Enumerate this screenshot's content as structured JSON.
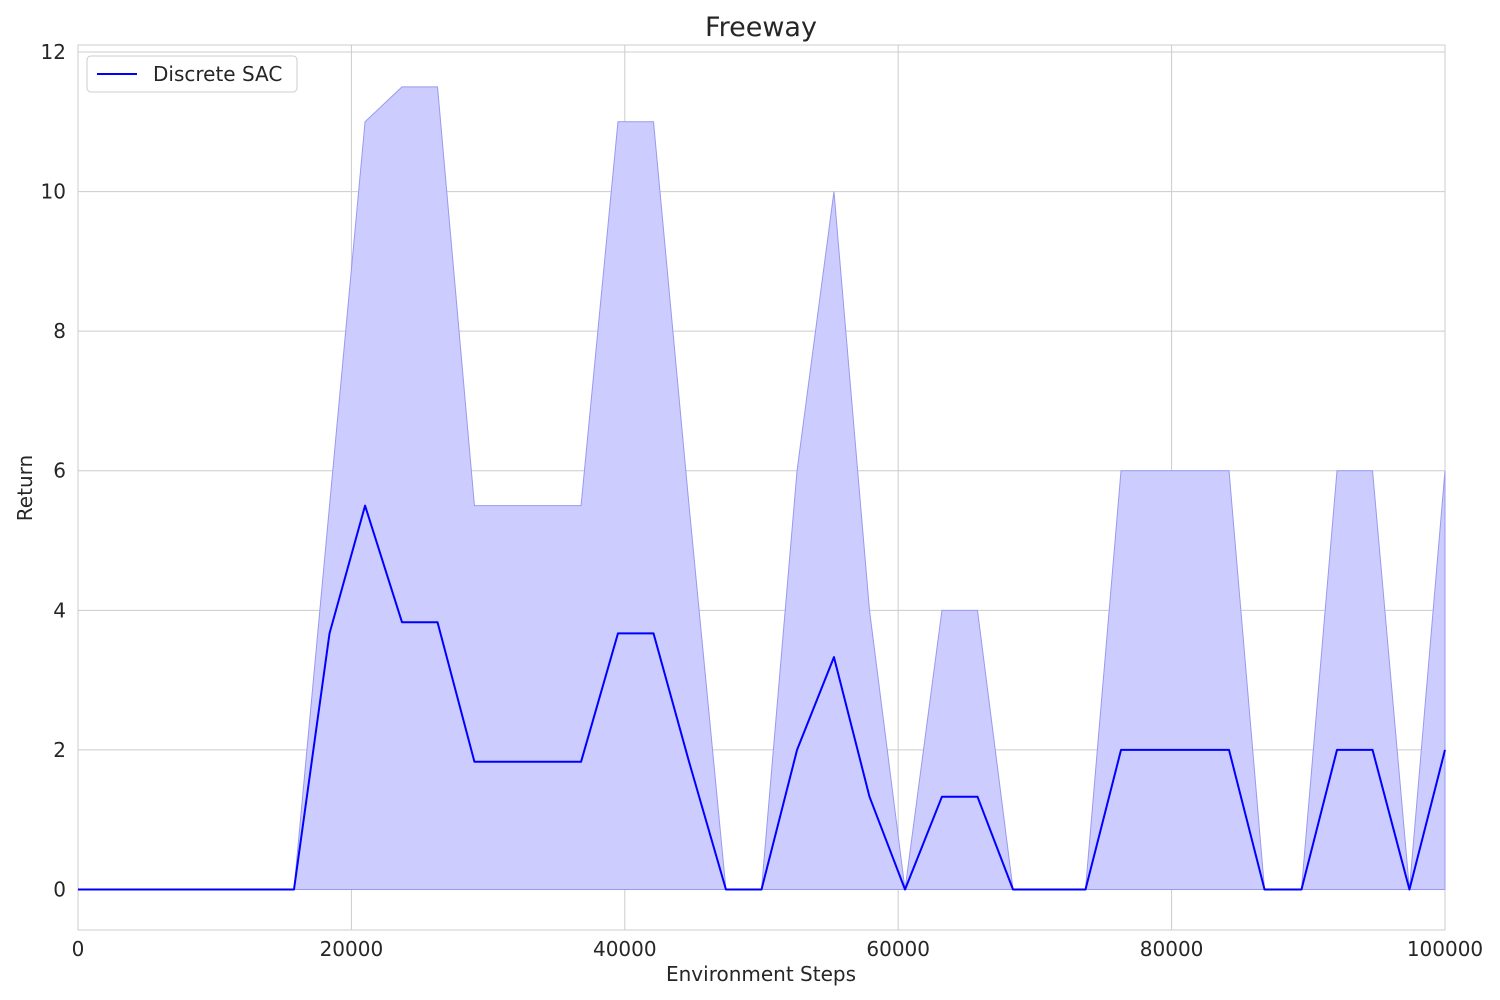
{
  "chart_data": {
    "type": "line",
    "title": "Freeway",
    "xlabel": "Environment Steps",
    "ylabel": "Return",
    "xlim": [
      0,
      100000
    ],
    "ylim": [
      -0.58,
      12.1
    ],
    "x_ticks": [
      0,
      20000,
      40000,
      60000,
      80000,
      100000
    ],
    "y_ticks": [
      0,
      2,
      4,
      6,
      8,
      10,
      12
    ],
    "grid": true,
    "legend_placement": "top-left",
    "series": [
      {
        "name": "Discrete SAC",
        "color": "#0000ff",
        "band_color": "#ccccff",
        "x": [
          0,
          15800,
          18400,
          21000,
          23700,
          26300,
          29000,
          31600,
          34200,
          36800,
          39500,
          42100,
          44700,
          47400,
          50000,
          52600,
          55300,
          57900,
          60500,
          63200,
          65800,
          68400,
          71000,
          73700,
          76300,
          78900,
          81600,
          84200,
          86800,
          89500,
          92100,
          94700,
          97400,
          100000
        ],
        "values": [
          0,
          0,
          3.67,
          5.5,
          3.83,
          3.83,
          1.83,
          1.83,
          1.83,
          1.83,
          3.67,
          3.67,
          1.83,
          0,
          0,
          2,
          3.33,
          1.33,
          0,
          1.33,
          1.33,
          0,
          0,
          0,
          2,
          2,
          2,
          2,
          0,
          0,
          2,
          2,
          0,
          2
        ],
        "lower": [
          0,
          0,
          0,
          0,
          0,
          0,
          0,
          0,
          0,
          0,
          0,
          0,
          0,
          0,
          0,
          0,
          0,
          0,
          0,
          0,
          0,
          0,
          0,
          0,
          0,
          0,
          0,
          0,
          0,
          0,
          0,
          0,
          0,
          0
        ],
        "upper": [
          0,
          0,
          5.5,
          11,
          11.5,
          11.5,
          5.5,
          5.5,
          5.5,
          5.5,
          11,
          11,
          5.5,
          0,
          0,
          6,
          10,
          4,
          0,
          4,
          4,
          0,
          0,
          0,
          6,
          6,
          6,
          6,
          0,
          0,
          6,
          6,
          0,
          6
        ]
      }
    ]
  }
}
